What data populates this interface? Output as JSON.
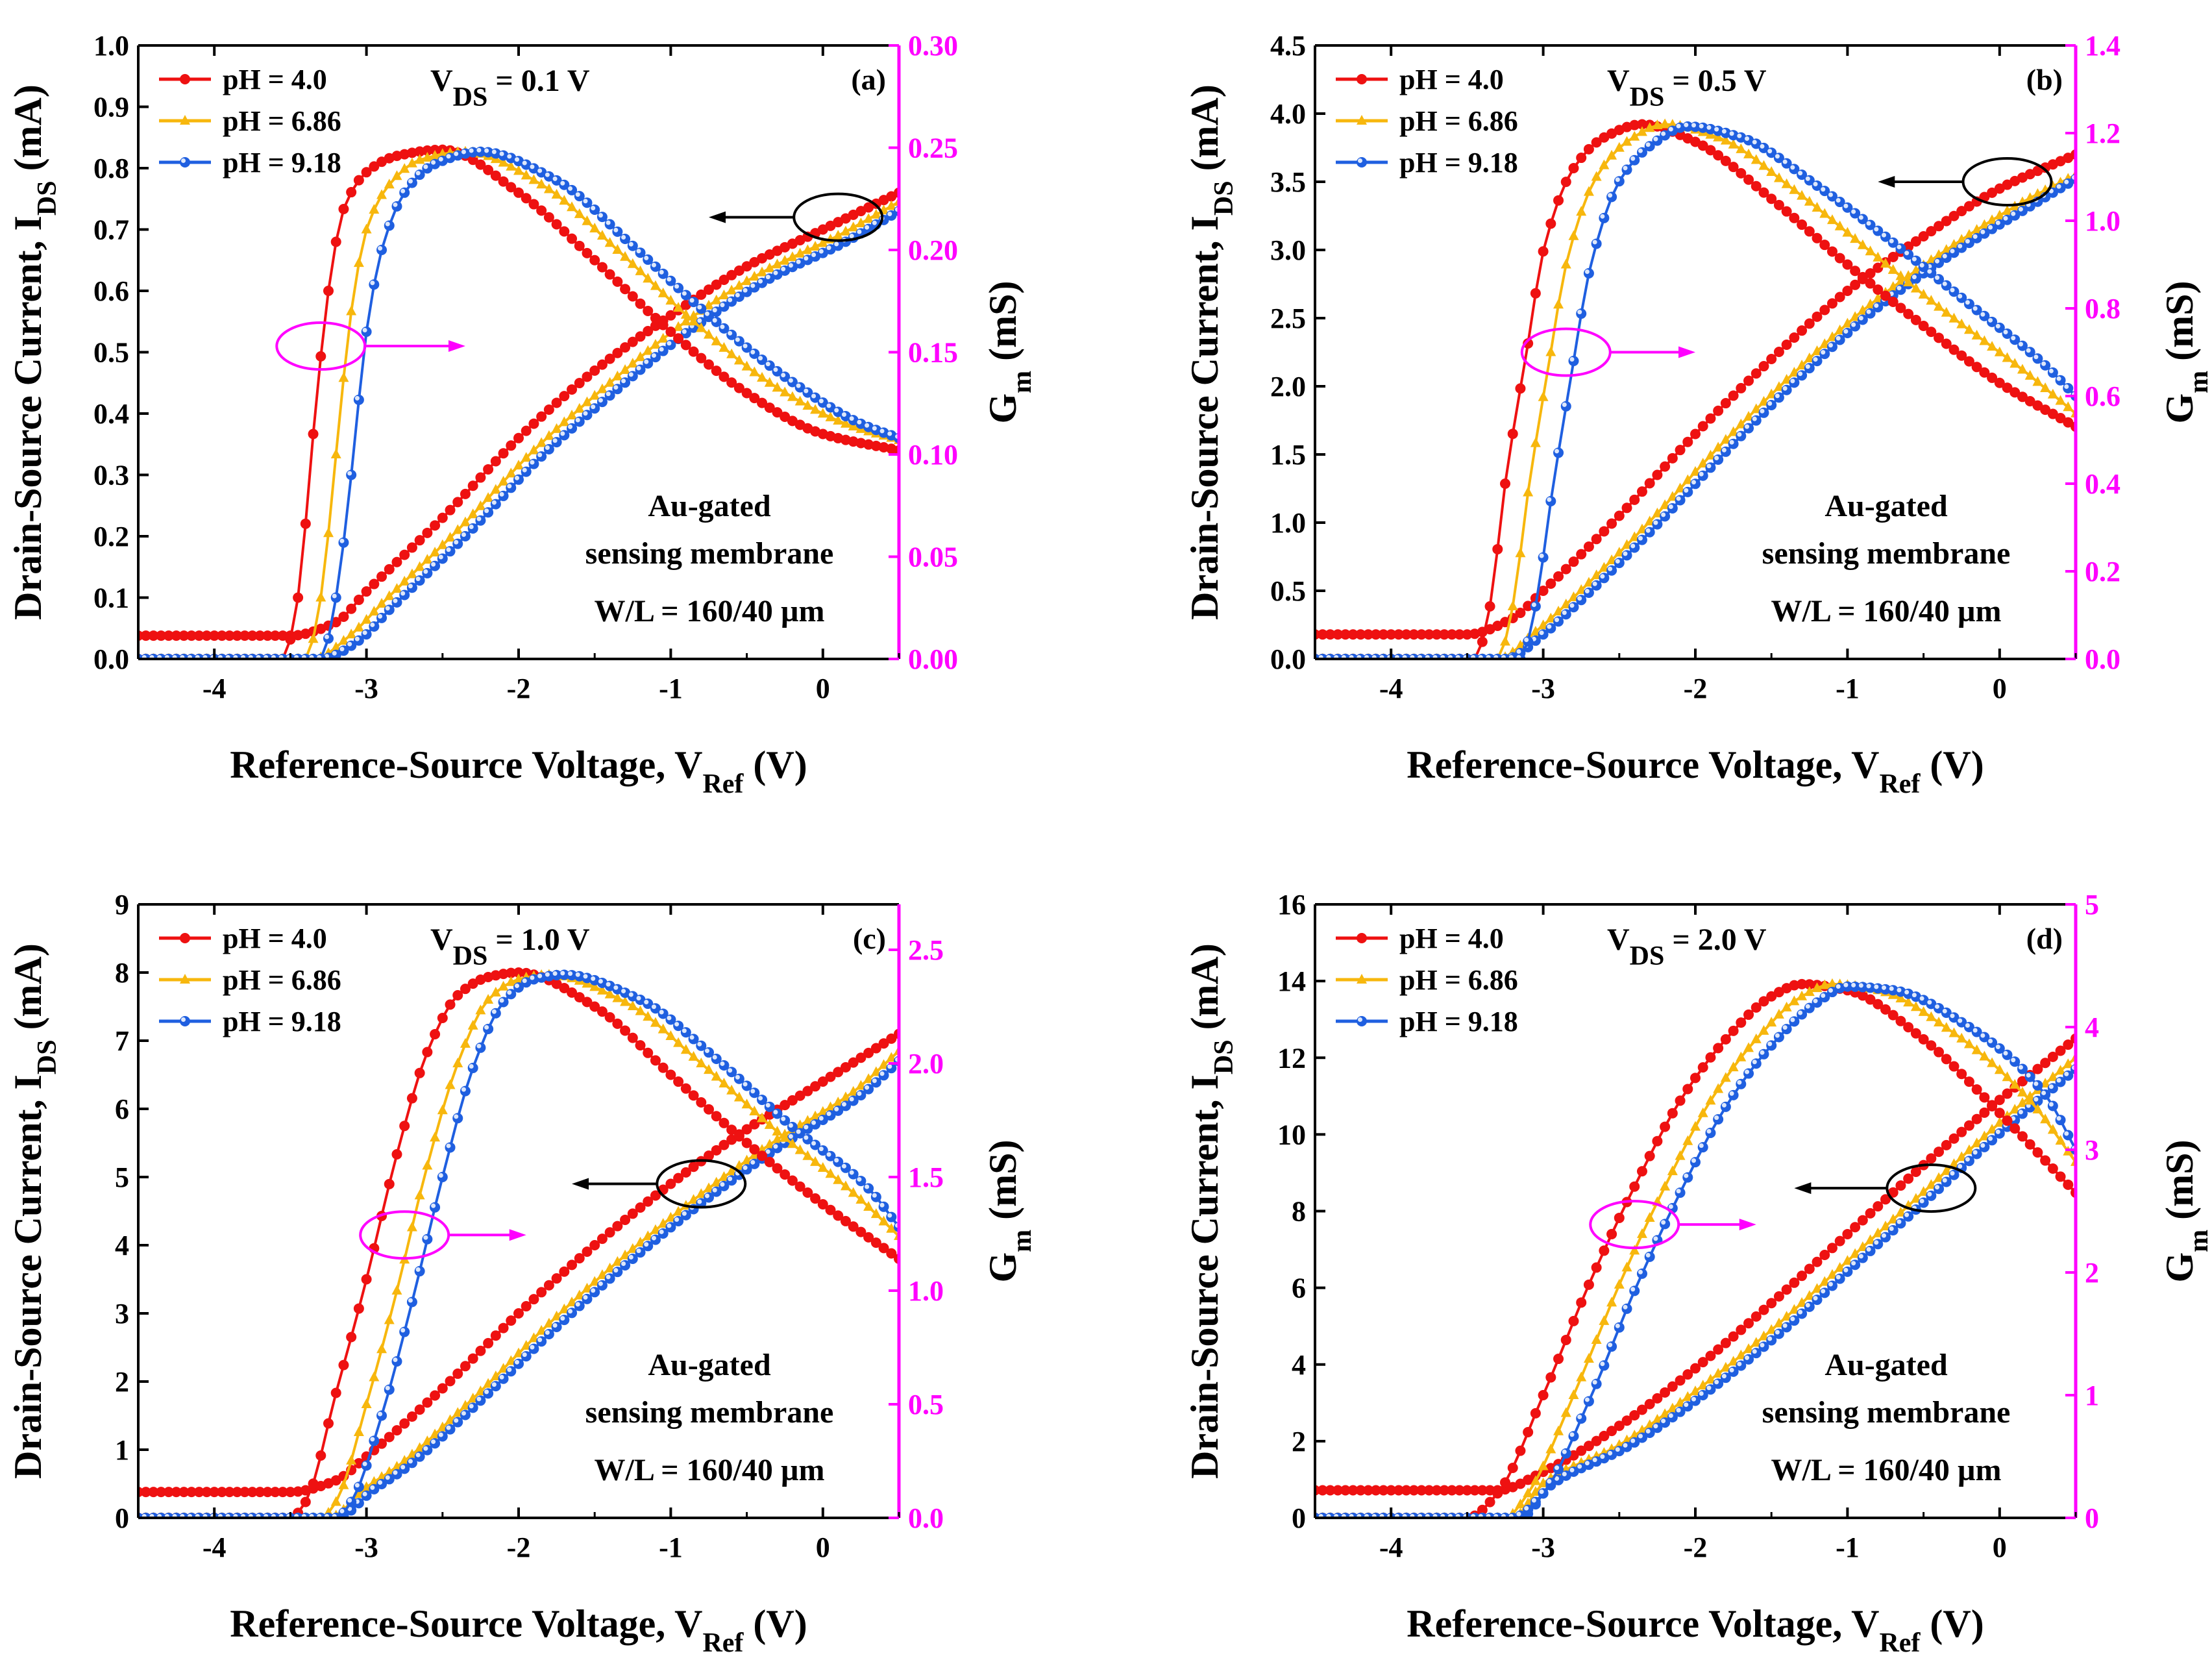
{
  "figure": {
    "panel_tags": [
      "(a)",
      "(b)",
      "(c)",
      "(d)"
    ],
    "annotation_line1": "Au-gated",
    "annotation_line2": "sensing membrane",
    "annotation_line3": "W/L = 160/40 µm",
    "legend_labels": [
      "pH = 4.0",
      "pH = 6.86",
      "pH = 9.18"
    ],
    "x_title_main": "Reference-Source Voltage, V",
    "x_title_sub": "Ref",
    "x_title_unit": " (V)",
    "y_title_main": "Drain-Source Current, I",
    "y_title_sub": "DS",
    "y_title_unit": " (mA)",
    "y2_title_main": "G",
    "y2_title_sub": "m",
    "y2_title_unit": " (mS)",
    "vds_prefix": "V",
    "vds_sub": "DS"
  },
  "colors": {
    "ph4": "#ee1111",
    "ph686": "#f7b70d",
    "ph918": "#1f5fe0",
    "gm_axis": "#ff00ff",
    "axis": "#000000"
  },
  "chart_data": [
    {
      "type": "line",
      "panel": "(a)",
      "vds_value": " = 0.1 V",
      "xlim": [
        -4.5,
        0.5
      ],
      "x_ticks": [
        "-4",
        "-3",
        "-2",
        "-1",
        "0"
      ],
      "ylim": [
        0,
        1.0
      ],
      "y_ticks": [
        "0.0",
        "0.1",
        "0.2",
        "0.3",
        "0.4",
        "0.5",
        "0.6",
        "0.7",
        "0.8",
        "0.9",
        "1.0"
      ],
      "y2lim": [
        0,
        0.3
      ],
      "y2_ticks": [
        "0.00",
        "0.05",
        "0.10",
        "0.15",
        "0.20",
        "0.25",
        "0.30"
      ],
      "ids_series": [
        {
          "name": "pH = 4.0",
          "x": [
            -4.5,
            -3.5,
            -3.2,
            -3.0,
            -2.5,
            -2.0,
            -1.5,
            -1.0,
            -0.5,
            0.0,
            0.5
          ],
          "y": [
            0.038,
            0.038,
            0.06,
            0.11,
            0.23,
            0.36,
            0.47,
            0.56,
            0.64,
            0.7,
            0.76
          ]
        },
        {
          "name": "pH = 6.86",
          "x": [
            -4.5,
            -3.35,
            -3.1,
            -2.9,
            -2.4,
            -1.9,
            -1.4,
            -0.9,
            -0.4,
            0.1,
            0.5
          ],
          "y": [
            0.0,
            0.0,
            0.04,
            0.09,
            0.21,
            0.34,
            0.45,
            0.55,
            0.63,
            0.69,
            0.745
          ]
        },
        {
          "name": "pH = 9.18",
          "x": [
            -4.5,
            -3.3,
            -3.05,
            -2.85,
            -2.35,
            -1.85,
            -1.35,
            -0.85,
            -0.35,
            0.15,
            0.5
          ],
          "y": [
            0.0,
            0.0,
            0.03,
            0.08,
            0.2,
            0.33,
            0.44,
            0.54,
            0.62,
            0.68,
            0.73
          ]
        }
      ],
      "gm_series": [
        {
          "name": "pH = 4.0",
          "x": [
            -4.5,
            -3.55,
            -3.45,
            -3.35,
            -3.25,
            -3.15,
            -3.0,
            -2.8,
            -2.5,
            -2.0,
            -1.5,
            -1.0,
            -0.5,
            0.0,
            0.5
          ],
          "y": [
            0.0,
            0.0,
            0.03,
            0.11,
            0.18,
            0.22,
            0.238,
            0.246,
            0.249,
            0.228,
            0.195,
            0.16,
            0.13,
            0.11,
            0.102
          ]
        },
        {
          "name": "pH = 6.86",
          "x": [
            -4.5,
            -3.4,
            -3.3,
            -3.2,
            -3.1,
            -3.0,
            -2.85,
            -2.65,
            -2.35,
            -1.85,
            -1.35,
            -0.85,
            -0.35,
            0.15,
            0.5
          ],
          "y": [
            0.0,
            0.0,
            0.03,
            0.1,
            0.17,
            0.21,
            0.232,
            0.244,
            0.248,
            0.232,
            0.2,
            0.165,
            0.135,
            0.115,
            0.107
          ]
        },
        {
          "name": "pH = 9.18",
          "x": [
            -4.5,
            -3.3,
            -3.2,
            -3.1,
            -3.0,
            -2.9,
            -2.75,
            -2.55,
            -2.25,
            -1.75,
            -1.25,
            -0.75,
            -0.25,
            0.25,
            0.5
          ],
          "y": [
            0.0,
            0.0,
            0.03,
            0.09,
            0.16,
            0.2,
            0.228,
            0.242,
            0.248,
            0.234,
            0.202,
            0.168,
            0.138,
            0.115,
            0.108
          ]
        }
      ],
      "arrow_black": {
        "ellipse_x": 0.1,
        "ellipse_y": 0.72,
        "arrow_to_x": -0.75
      },
      "arrow_magenta": {
        "ellipse_x": -3.3,
        "ellipse_y": 0.51,
        "arrow_to_x": -2.35
      }
    },
    {
      "type": "line",
      "panel": "(b)",
      "vds_value": " = 0.5 V",
      "xlim": [
        -4.5,
        0.5
      ],
      "x_ticks": [
        "-4",
        "-3",
        "-2",
        "-1",
        "0"
      ],
      "ylim": [
        0,
        4.5
      ],
      "y_ticks": [
        "0.0",
        "0.5",
        "1.0",
        "1.5",
        "2.0",
        "2.5",
        "3.0",
        "3.5",
        "4.0",
        "4.5"
      ],
      "y2lim": [
        0,
        1.4
      ],
      "y2_ticks": [
        "0.0",
        "0.2",
        "0.4",
        "0.6",
        "0.8",
        "1.0",
        "1.2",
        "1.4"
      ],
      "ids_series": [
        {
          "name": "pH = 4.0",
          "x": [
            -4.5,
            -3.5,
            -3.2,
            -3.0,
            -2.5,
            -2.0,
            -1.5,
            -1.0,
            -0.5,
            0.0,
            0.5
          ],
          "y": [
            0.18,
            0.18,
            0.3,
            0.5,
            1.05,
            1.65,
            2.2,
            2.7,
            3.1,
            3.45,
            3.7
          ]
        },
        {
          "name": "pH = 6.86",
          "x": [
            -4.5,
            -3.3,
            -3.05,
            -2.85,
            -2.35,
            -1.85,
            -1.35,
            -0.85,
            -0.35,
            0.15,
            0.5
          ],
          "y": [
            0.0,
            0.0,
            0.2,
            0.4,
            0.95,
            1.55,
            2.1,
            2.6,
            3.0,
            3.35,
            3.55
          ]
        },
        {
          "name": "pH = 9.18",
          "x": [
            -4.5,
            -3.25,
            -3.0,
            -2.8,
            -2.3,
            -1.8,
            -1.3,
            -0.8,
            -0.3,
            0.2,
            0.5
          ],
          "y": [
            0.0,
            0.0,
            0.18,
            0.38,
            0.93,
            1.52,
            2.08,
            2.58,
            2.98,
            3.32,
            3.52
          ]
        }
      ],
      "gm_series": [
        {
          "name": "pH = 4.0",
          "x": [
            -4.5,
            -3.45,
            -3.35,
            -3.25,
            -3.1,
            -3.0,
            -2.8,
            -2.6,
            -2.35,
            -2.0,
            -1.5,
            -1.0,
            -0.5,
            0.0,
            0.5
          ],
          "y": [
            0.0,
            0.0,
            0.12,
            0.4,
            0.72,
            0.93,
            1.12,
            1.19,
            1.22,
            1.18,
            1.05,
            0.9,
            0.76,
            0.63,
            0.53
          ]
        },
        {
          "name": "pH = 6.86",
          "x": [
            -4.5,
            -3.3,
            -3.2,
            -3.1,
            -2.95,
            -2.85,
            -2.65,
            -2.45,
            -2.2,
            -1.85,
            -1.35,
            -0.85,
            -0.35,
            0.15,
            0.5
          ],
          "y": [
            0.0,
            0.0,
            0.12,
            0.38,
            0.7,
            0.9,
            1.1,
            1.18,
            1.22,
            1.19,
            1.07,
            0.93,
            0.79,
            0.66,
            0.56
          ]
        },
        {
          "name": "pH = 9.18",
          "x": [
            -4.5,
            -3.15,
            -3.05,
            -2.95,
            -2.8,
            -2.7,
            -2.5,
            -2.3,
            -2.05,
            -1.7,
            -1.2,
            -0.7,
            -0.2,
            0.3,
            0.5
          ],
          "y": [
            0.0,
            0.0,
            0.12,
            0.36,
            0.68,
            0.88,
            1.09,
            1.17,
            1.215,
            1.19,
            1.08,
            0.95,
            0.81,
            0.67,
            0.6
          ]
        }
      ],
      "arrow_black": {
        "ellipse_x": 0.05,
        "ellipse_y": 3.5,
        "arrow_to_x": -0.8
      },
      "arrow_magenta": {
        "ellipse_x": -2.85,
        "ellipse_y": 2.25,
        "arrow_to_x": -2.0
      }
    },
    {
      "type": "line",
      "panel": "(c)",
      "vds_value": " = 1.0 V",
      "xlim": [
        -4.5,
        0.5
      ],
      "x_ticks": [
        "-4",
        "-3",
        "-2",
        "-1",
        "0"
      ],
      "ylim": [
        0,
        9
      ],
      "y_ticks": [
        "0",
        "1",
        "2",
        "3",
        "4",
        "5",
        "6",
        "7",
        "8",
        "9"
      ],
      "y2lim": [
        0,
        2.7
      ],
      "y2_ticks": [
        "0.0",
        "0.5",
        "1.0",
        "1.5",
        "2.0",
        "2.5"
      ],
      "ids_series": [
        {
          "name": "pH = 4.0",
          "x": [
            -4.5,
            -3.5,
            -3.2,
            -3.0,
            -2.5,
            -2.0,
            -1.5,
            -1.0,
            -0.5,
            0.0,
            0.5
          ],
          "y": [
            0.38,
            0.38,
            0.55,
            0.9,
            1.9,
            3.0,
            4.0,
            4.9,
            5.7,
            6.4,
            7.1
          ]
        },
        {
          "name": "pH = 6.86",
          "x": [
            -4.5,
            -3.25,
            -3.0,
            -2.8,
            -2.3,
            -1.8,
            -1.3,
            -0.8,
            -0.3,
            0.2,
            0.5
          ],
          "y": [
            0.0,
            0.0,
            0.45,
            0.75,
            1.75,
            2.85,
            3.85,
            4.75,
            5.55,
            6.25,
            6.85
          ]
        },
        {
          "name": "pH = 9.18",
          "x": [
            -4.5,
            -3.2,
            -2.95,
            -2.75,
            -2.25,
            -1.75,
            -1.25,
            -0.75,
            -0.25,
            0.25,
            0.5
          ],
          "y": [
            0.0,
            0.0,
            0.42,
            0.72,
            1.72,
            2.8,
            3.8,
            4.7,
            5.5,
            6.2,
            6.7
          ]
        }
      ],
      "gm_series": [
        {
          "name": "pH = 4.0",
          "x": [
            -4.5,
            -3.5,
            -3.4,
            -3.2,
            -3.0,
            -2.8,
            -2.6,
            -2.4,
            -2.2,
            -2.0,
            -1.5,
            -1.0,
            -0.5,
            0.0,
            0.5
          ],
          "y": [
            0.0,
            0.0,
            0.07,
            0.55,
            1.05,
            1.6,
            2.05,
            2.3,
            2.38,
            2.4,
            2.25,
            1.95,
            1.65,
            1.38,
            1.14
          ]
        },
        {
          "name": "pH = 6.86",
          "x": [
            -4.5,
            -3.3,
            -3.2,
            -3.0,
            -2.8,
            -2.6,
            -2.4,
            -2.2,
            -2.0,
            -1.8,
            -1.3,
            -0.8,
            -0.3,
            0.2,
            0.5
          ],
          "y": [
            0.0,
            0.0,
            0.07,
            0.5,
            1.0,
            1.55,
            2.0,
            2.28,
            2.37,
            2.39,
            2.27,
            2.0,
            1.7,
            1.43,
            1.24
          ]
        },
        {
          "name": "pH = 9.18",
          "x": [
            -4.5,
            -3.2,
            -3.1,
            -2.9,
            -2.7,
            -2.5,
            -2.3,
            -2.1,
            -1.9,
            -1.7,
            -1.2,
            -0.7,
            -0.2,
            0.3,
            0.5
          ],
          "y": [
            0.0,
            0.0,
            0.07,
            0.45,
            0.95,
            1.5,
            1.98,
            2.27,
            2.37,
            2.39,
            2.28,
            2.02,
            1.72,
            1.45,
            1.28
          ]
        }
      ],
      "arrow_black": {
        "ellipse_x": -0.8,
        "ellipse_y": 4.9,
        "arrow_to_x": -1.65
      },
      "arrow_magenta": {
        "ellipse_x": -2.75,
        "ellipse_y": 4.15,
        "arrow_to_x": -1.95
      }
    },
    {
      "type": "line",
      "panel": "(d)",
      "vds_value": " = 2.0 V",
      "xlim": [
        -4.5,
        0.5
      ],
      "x_ticks": [
        "-4",
        "-3",
        "-2",
        "-1",
        "0"
      ],
      "ylim": [
        0,
        16
      ],
      "y_ticks": [
        "0",
        "2",
        "4",
        "6",
        "8",
        "10",
        "12",
        "14",
        "16"
      ],
      "y2lim": [
        0,
        5
      ],
      "y2_ticks": [
        "0",
        "1",
        "2",
        "3",
        "4",
        "5"
      ],
      "ids_series": [
        {
          "name": "pH = 4.0",
          "x": [
            -4.5,
            -3.3,
            -3.0,
            -2.5,
            -2.0,
            -1.5,
            -1.0,
            -0.5,
            0.0,
            0.5
          ],
          "y": [
            0.72,
            0.72,
            1.2,
            2.4,
            3.9,
            5.6,
            7.4,
            9.2,
            10.9,
            12.5
          ]
        },
        {
          "name": "pH = 6.86",
          "x": [
            -4.5,
            -3.2,
            -3.0,
            -2.5,
            -2.0,
            -1.5,
            -1.0,
            -0.5,
            0.0,
            0.5
          ],
          "y": [
            0.0,
            0.0,
            0.9,
            1.9,
            3.3,
            4.9,
            6.7,
            8.5,
            10.3,
            12.0
          ]
        },
        {
          "name": "pH = 9.18",
          "x": [
            -4.5,
            -3.15,
            -2.95,
            -2.45,
            -1.95,
            -1.45,
            -0.95,
            -0.45,
            0.05,
            0.5
          ],
          "y": [
            0.0,
            0.0,
            0.85,
            1.85,
            3.2,
            4.8,
            6.6,
            8.4,
            10.2,
            11.7
          ]
        }
      ],
      "gm_series": [
        {
          "name": "pH = 4.0",
          "x": [
            -4.5,
            -3.5,
            -3.3,
            -3.0,
            -2.7,
            -2.4,
            -2.1,
            -1.8,
            -1.5,
            -1.3,
            -1.0,
            -0.5,
            0.0,
            0.5
          ],
          "y": [
            0.0,
            0.0,
            0.2,
            1.0,
            1.9,
            2.7,
            3.4,
            3.9,
            4.25,
            4.35,
            4.3,
            3.9,
            3.3,
            2.65
          ]
        },
        {
          "name": "pH = 6.86",
          "x": [
            -4.5,
            -3.25,
            -3.1,
            -2.8,
            -2.5,
            -2.2,
            -1.9,
            -1.6,
            -1.3,
            -1.1,
            -0.8,
            -0.3,
            0.2,
            0.5
          ],
          "y": [
            0.0,
            0.0,
            0.2,
            1.0,
            1.9,
            2.7,
            3.4,
            3.9,
            4.25,
            4.35,
            4.3,
            3.95,
            3.4,
            2.9
          ]
        },
        {
          "name": "pH = 9.18",
          "x": [
            -4.5,
            -3.2,
            -3.0,
            -2.7,
            -2.4,
            -2.1,
            -1.8,
            -1.5,
            -1.2,
            -1.0,
            -0.7,
            -0.2,
            0.3,
            0.5
          ],
          "y": [
            0.0,
            0.0,
            0.2,
            0.95,
            1.85,
            2.65,
            3.35,
            3.85,
            4.2,
            4.33,
            4.3,
            4.0,
            3.45,
            3.0
          ]
        }
      ],
      "arrow_black": {
        "ellipse_x": -0.45,
        "ellipse_y": 8.6,
        "arrow_to_x": -1.35
      },
      "arrow_magenta": {
        "ellipse_x": -2.4,
        "ellipse_y": 7.65,
        "arrow_to_x": -1.6
      }
    }
  ]
}
